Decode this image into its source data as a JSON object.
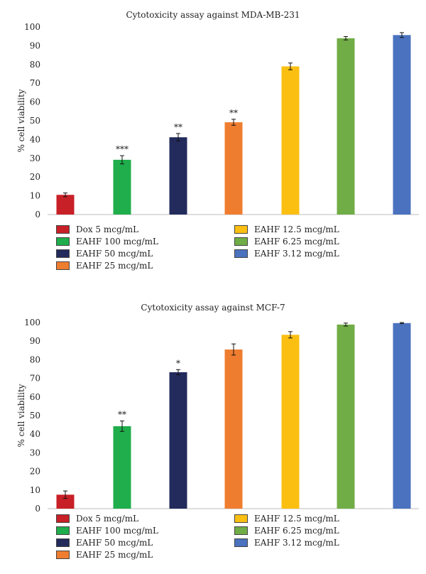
{
  "chart_data": [
    {
      "type": "bar",
      "title": "Cytotoxicity assay against MDA-MB-231",
      "ylabel": "% cell viability",
      "xlabel": "",
      "ylim": [
        0,
        100
      ],
      "yticks": [
        0,
        10,
        20,
        30,
        40,
        50,
        60,
        70,
        80,
        90,
        100
      ],
      "grid": false,
      "legend_position": "bottom",
      "categories": [
        "Dox 5 mcg/mL",
        "EAHF 100 mcg/mL",
        "EAHF 50 mcg/mL",
        "EAHF 25 mcg/mL",
        "EAHF 12.5 mcg/mL",
        "EAHF 6.25 mcg/mL",
        "EAHF 3.12 mcg/mL"
      ],
      "values": [
        10.5,
        29.2,
        41.2,
        49.2,
        79.0,
        94.0,
        95.7
      ],
      "errors": [
        1.0,
        2.2,
        2.0,
        1.6,
        1.8,
        0.9,
        1.3
      ],
      "annotations": [
        "",
        "***",
        "**",
        "**",
        "",
        "",
        ""
      ],
      "colors": [
        "#c82027",
        "#1fae4b",
        "#232b5c",
        "#ef7d30",
        "#fbbf12",
        "#70ad46",
        "#4a72bf"
      ]
    },
    {
      "type": "bar",
      "title": "Cytotoxicity assay against MCF-7",
      "ylabel": "% cell viability",
      "xlabel": "",
      "ylim": [
        0,
        100
      ],
      "yticks": [
        0,
        10,
        20,
        30,
        40,
        50,
        60,
        70,
        80,
        90,
        100
      ],
      "grid": false,
      "legend_position": "bottom",
      "categories": [
        "Dox 5 mcg/mL",
        "EAHF 100 mcg/mL",
        "EAHF 50 mcg/mL",
        "EAHF 25 mcg/mL",
        "EAHF 12.5 mcg/mL",
        "EAHF 6.25 mcg/mL",
        "EAHF 3.12 mcg/mL"
      ],
      "values": [
        7.5,
        44.3,
        73.3,
        85.5,
        93.4,
        98.9,
        99.7
      ],
      "errors": [
        2.0,
        2.8,
        1.4,
        3.0,
        1.7,
        0.8,
        0.3
      ],
      "annotations": [
        "",
        "**",
        "*",
        "",
        "",
        "",
        ""
      ],
      "colors": [
        "#c82027",
        "#1fae4b",
        "#232b5c",
        "#ef7d30",
        "#fbbf12",
        "#70ad46",
        "#4a72bf"
      ]
    }
  ]
}
